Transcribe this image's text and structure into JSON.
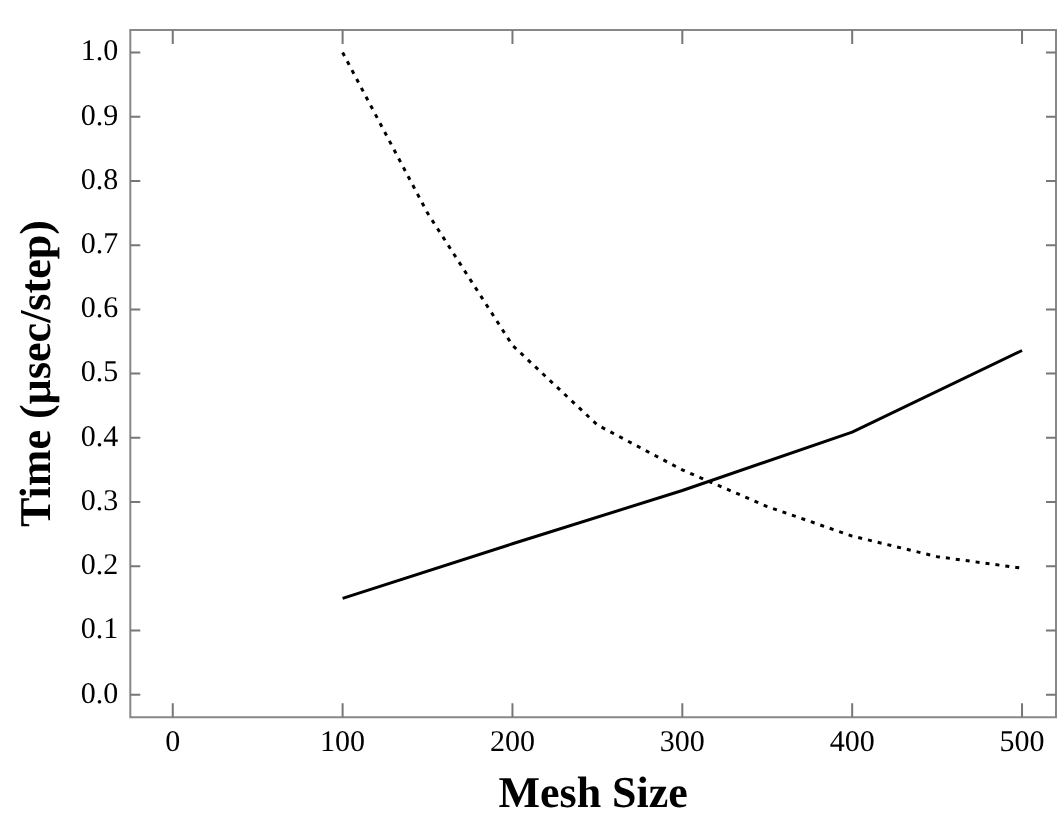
{
  "chart_data": {
    "type": "line",
    "xlabel": "Mesh Size",
    "ylabel": "Time (µsec/step)",
    "xlim": [
      -25,
      520
    ],
    "xticks": [
      0,
      100,
      200,
      300,
      400,
      500
    ],
    "ylim": [
      -0.035,
      1.035
    ],
    "yticks": [
      {
        "value": 0,
        "label": "0.0"
      },
      0.1,
      0.2,
      0.3,
      0.4,
      0.5,
      0.6,
      0.7,
      0.8,
      0.9,
      {
        "value": 1,
        "label": "1.0"
      }
    ],
    "grid": false,
    "legend": false,
    "marker": "none",
    "series": [
      {
        "color": "#000000",
        "line_style": "solid",
        "x": [
          100,
          200,
          300,
          400,
          500
        ],
        "values": [
          0.15,
          0.235,
          0.318,
          0.409,
          0.536
        ]
      },
      {
        "color": "#000000",
        "line_style": "dotted",
        "x": [
          100,
          150,
          200,
          250,
          300,
          350,
          400,
          450,
          500
        ],
        "values": [
          1.0,
          0.75,
          0.544,
          0.42,
          0.35,
          0.293,
          0.247,
          0.215,
          0.197
        ]
      }
    ]
  }
}
